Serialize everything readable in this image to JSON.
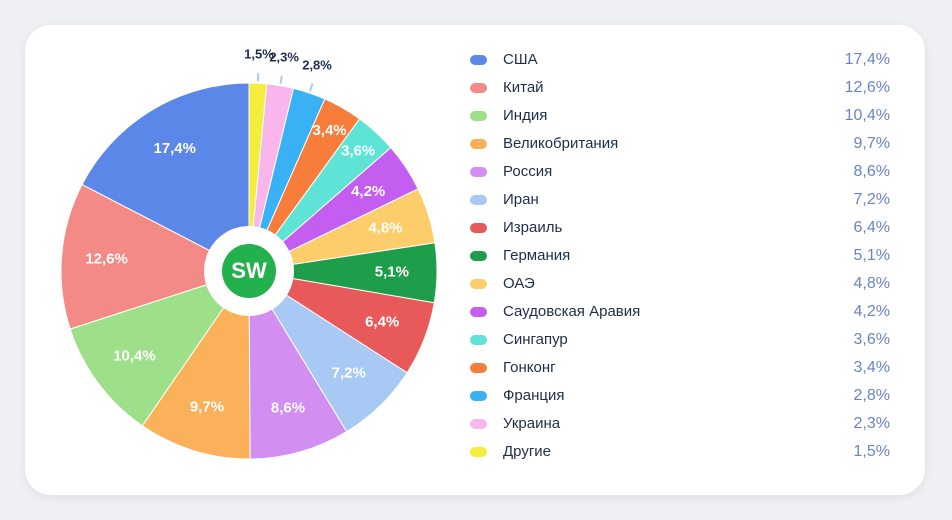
{
  "chart_data": {
    "type": "pie",
    "annotation": "SW",
    "categories": [
      "США",
      "Китай",
      "Индия",
      "Великобритания",
      "Россия",
      "Иран",
      "Израиль",
      "Германия",
      "ОАЭ",
      "Саудовская Аравия",
      "Сингапур",
      "Гонконг",
      "Франция",
      "Украина",
      "Другие"
    ],
    "values": [
      17.4,
      12.6,
      10.4,
      9.7,
      8.6,
      7.2,
      6.4,
      5.1,
      4.8,
      4.2,
      3.6,
      3.4,
      2.8,
      2.3,
      1.5
    ],
    "value_labels": [
      "17,4%",
      "12,6%",
      "10,4%",
      "9,7%",
      "8,6%",
      "7,2%",
      "6,4%",
      "5,1%",
      "4,8%",
      "4,2%",
      "3,6%",
      "3,4%",
      "2,8%",
      "2,3%",
      "1,5%"
    ],
    "colors": [
      "#5b87e8",
      "#f48a85",
      "#9ee08a",
      "#fbb05a",
      "#d28ef0",
      "#a9c9f5",
      "#e85a5a",
      "#1e9e4a",
      "#fccd6a",
      "#c35ef0",
      "#5ee3d6",
      "#f87c3a",
      "#3ab0f5",
      "#f9b6ec",
      "#f5ed3c"
    ],
    "direction": "counterclockwise",
    "legend": "right"
  }
}
